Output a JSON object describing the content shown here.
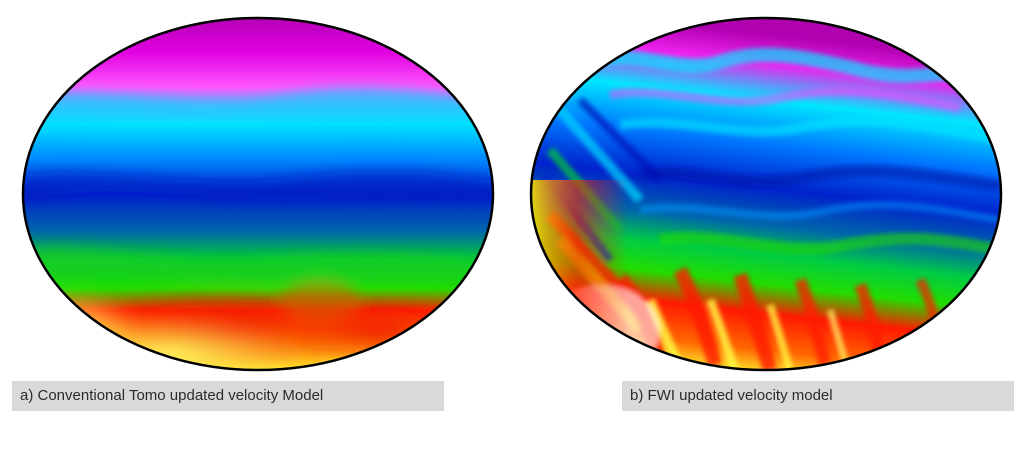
{
  "panels": [
    {
      "caption": "a) Conventional Tomo updated velocity Model",
      "image": "smooth-velocity-model-ellipse"
    },
    {
      "caption": "b) FWI updated velocity model",
      "image": "high-resolution-velocity-model-ellipse"
    }
  ],
  "colors": {
    "magenta": "#e600e6",
    "cyan": "#00e6ff",
    "blue": "#0033dd",
    "green": "#22dd00",
    "red": "#ff1a00",
    "yellow": "#ffff33",
    "white": "#ffffff",
    "outline": "#000000",
    "caption_bg": "#d9d9d9"
  }
}
